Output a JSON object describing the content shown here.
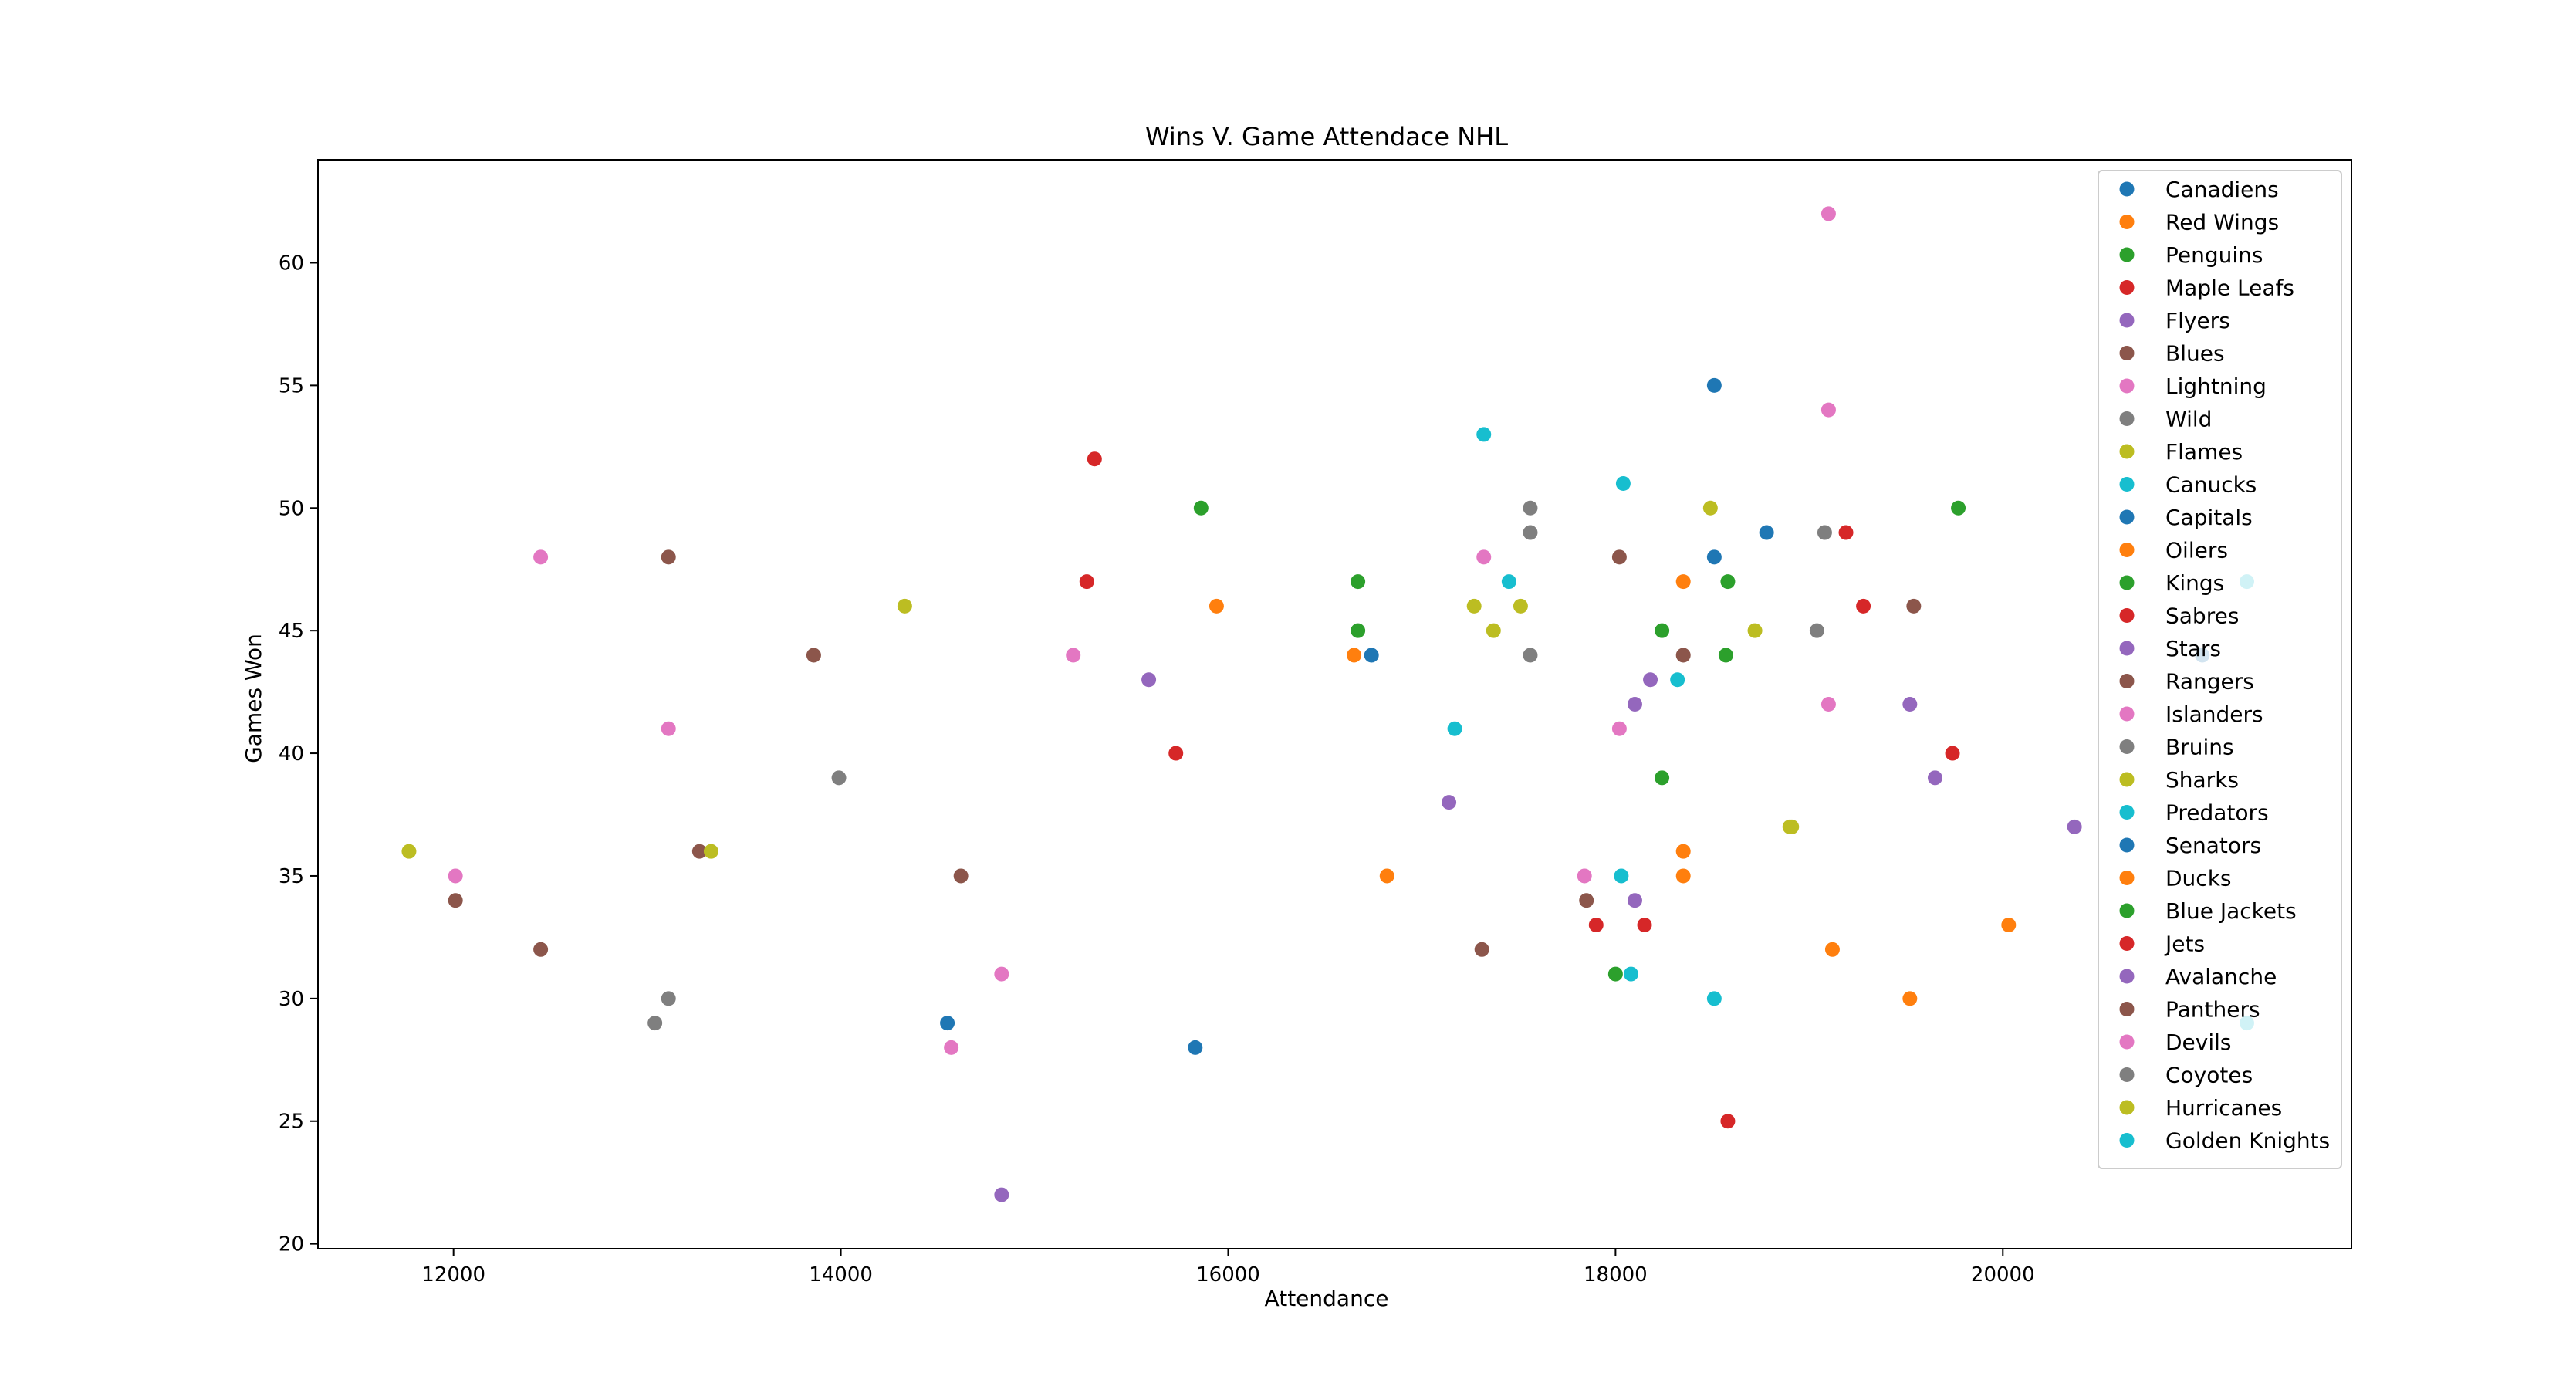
{
  "chart_data": {
    "type": "scatter",
    "title": "Wins V. Game Attendace NHL",
    "xlabel": "Attendance",
    "ylabel": "Games Won",
    "xlim": [
      11300,
      21800
    ],
    "ylim": [
      19.8,
      64.2
    ],
    "xticks": [
      12000,
      14000,
      16000,
      18000,
      20000
    ],
    "yticks": [
      20,
      25,
      30,
      35,
      40,
      45,
      50,
      55,
      60
    ],
    "xtick_labels": [
      "12000",
      "14000",
      "16000",
      "18000",
      "20000"
    ],
    "ytick_labels": [
      "20",
      "25",
      "30",
      "35",
      "40",
      "45",
      "50",
      "55",
      "60"
    ],
    "grid": false,
    "legend_position": "top-right",
    "series": [
      {
        "name": "Canadiens",
        "color": "#1f77b4",
        "points": [
          [
            18510,
            55
          ],
          [
            18510,
            48
          ],
          [
            16740,
            44
          ],
          [
            14550,
            29
          ],
          [
            15830,
            28
          ]
        ]
      },
      {
        "name": "Red Wings",
        "color": "#ff7f0e",
        "points": [
          [
            15940,
            46
          ],
          [
            16650,
            44
          ],
          [
            18350,
            47
          ],
          [
            16820,
            35
          ],
          [
            18350,
            36
          ],
          [
            18350,
            35
          ]
        ]
      },
      {
        "name": "Penguins",
        "color": "#2ca02c",
        "points": [
          [
            15860,
            50
          ],
          [
            16670,
            47
          ],
          [
            16670,
            45
          ],
          [
            18580,
            47
          ],
          [
            18240,
            45
          ],
          [
            18570,
            44
          ],
          [
            18240,
            39
          ],
          [
            18000,
            31
          ]
        ]
      },
      {
        "name": "Maple Leafs",
        "color": "#d62728",
        "points": [
          [
            15310,
            52
          ],
          [
            15270,
            47
          ],
          [
            15730,
            40
          ],
          [
            19190,
            49
          ],
          [
            17900,
            33
          ],
          [
            18150,
            33
          ]
        ]
      },
      {
        "name": "Flyers",
        "color": "#9467bd",
        "points": [
          [
            15590,
            43
          ],
          [
            18180,
            43
          ],
          [
            18100,
            42
          ],
          [
            17140,
            38
          ],
          [
            18100,
            34
          ],
          [
            14830,
            22
          ]
        ]
      },
      {
        "name": "Blues",
        "color": "#8c564b",
        "points": [
          [
            13110,
            48
          ],
          [
            13860,
            44
          ],
          [
            18020,
            48
          ],
          [
            18350,
            44
          ],
          [
            14620,
            35
          ],
          [
            13270,
            36
          ],
          [
            12010,
            34
          ],
          [
            12450,
            32
          ]
        ]
      },
      {
        "name": "Lightning",
        "color": "#e377c2",
        "points": [
          [
            19100,
            62
          ],
          [
            19100,
            54
          ],
          [
            12450,
            48
          ],
          [
            17320,
            48
          ],
          [
            15200,
            44
          ],
          [
            13110,
            41
          ],
          [
            18020,
            41
          ],
          [
            19100,
            42
          ],
          [
            12010,
            35
          ],
          [
            17840,
            35
          ],
          [
            14830,
            31
          ],
          [
            14570,
            28
          ]
        ]
      },
      {
        "name": "Wild",
        "color": "#7f7f7f",
        "points": [
          [
            17560,
            50
          ],
          [
            17560,
            49
          ],
          [
            19080,
            49
          ],
          [
            17560,
            44
          ],
          [
            19040,
            45
          ],
          [
            13990,
            39
          ],
          [
            13110,
            30
          ],
          [
            13040,
            29
          ]
        ]
      },
      {
        "name": "Flames",
        "color": "#bcbd22",
        "points": [
          [
            14330,
            46
          ],
          [
            18490,
            50
          ],
          [
            17270,
            46
          ],
          [
            17370,
            45
          ],
          [
            17510,
            46
          ],
          [
            18720,
            45
          ],
          [
            18910,
            37
          ],
          [
            13330,
            36
          ],
          [
            11770,
            36
          ]
        ]
      },
      {
        "name": "Canucks",
        "color": "#17becf",
        "points": [
          [
            17320,
            53
          ],
          [
            18040,
            51
          ],
          [
            17450,
            47
          ],
          [
            17170,
            41
          ],
          [
            18320,
            43
          ],
          [
            18030,
            35
          ],
          [
            18080,
            31
          ],
          [
            18510,
            30
          ]
        ]
      },
      {
        "name": "Capitals",
        "color": "#1f77b4",
        "points": [
          [
            18780,
            49
          ]
        ]
      },
      {
        "name": "Oilers",
        "color": "#ff7f0e",
        "points": [
          [
            19120,
            32
          ],
          [
            19520,
            30
          ],
          [
            20030,
            33
          ]
        ]
      },
      {
        "name": "Kings",
        "color": "#2ca02c",
        "points": [
          [
            19770,
            50
          ]
        ]
      },
      {
        "name": "Sabres",
        "color": "#d62728",
        "points": [
          [
            19280,
            46
          ],
          [
            19740,
            40
          ],
          [
            18580,
            25
          ]
        ]
      },
      {
        "name": "Stars",
        "color": "#9467bd",
        "points": [
          [
            19520,
            42
          ],
          [
            19650,
            39
          ],
          [
            20370,
            37
          ]
        ]
      },
      {
        "name": "Rangers",
        "color": "#8c564b",
        "points": [
          [
            19540,
            46
          ],
          [
            17310,
            32
          ],
          [
            17850,
            34
          ]
        ]
      },
      {
        "name": "Islanders",
        "color": "#e377c2",
        "points": []
      },
      {
        "name": "Bruins",
        "color": "#7f7f7f",
        "points": []
      },
      {
        "name": "Sharks",
        "color": "#bcbd22",
        "points": [
          [
            18900,
            37
          ]
        ]
      },
      {
        "name": "Predators",
        "color": "#17becf",
        "points": [
          [
            21260,
            47
          ],
          [
            21260,
            29
          ]
        ]
      },
      {
        "name": "Senators",
        "color": "#1f77b4",
        "points": [
          [
            21030,
            44
          ]
        ]
      },
      {
        "name": "Ducks",
        "color": "#ff7f0e",
        "points": []
      },
      {
        "name": "Blue Jackets",
        "color": "#2ca02c",
        "points": []
      },
      {
        "name": "Jets",
        "color": "#d62728",
        "points": []
      },
      {
        "name": "Avalanche",
        "color": "#9467bd",
        "points": []
      },
      {
        "name": "Panthers",
        "color": "#8c564b",
        "points": []
      },
      {
        "name": "Devils",
        "color": "#e377c2",
        "points": []
      },
      {
        "name": "Coyotes",
        "color": "#7f7f7f",
        "points": []
      },
      {
        "name": "Hurricanes",
        "color": "#bcbd22",
        "points": []
      },
      {
        "name": "Golden Knights",
        "color": "#17becf",
        "points": []
      }
    ]
  }
}
